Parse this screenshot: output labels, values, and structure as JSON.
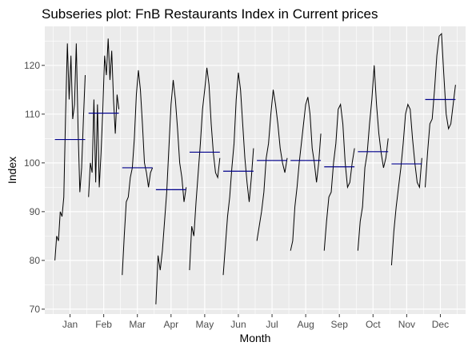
{
  "chart_data": {
    "type": "line",
    "title": "Subseries plot: FnB Restaurants Index in Current prices",
    "xlabel": "Month",
    "ylabel": "Index",
    "ylim": [
      69,
      128
    ],
    "yticks": [
      70,
      80,
      90,
      100,
      110,
      120
    ],
    "grid": true,
    "panel_background": "#ebebeb",
    "grid_color": "#ffffff",
    "line_color": "#000000",
    "mean_color": "#00008b",
    "months": [
      {
        "label": "Jan",
        "mean": 104.8,
        "values": [
          80,
          85,
          84,
          90,
          89,
          93,
          110,
          124.5,
          113,
          122,
          109,
          112,
          124.5,
          107,
          94,
          99,
          109,
          118
        ]
      },
      {
        "label": "Feb",
        "mean": 110.2,
        "values": [
          93,
          100,
          98,
          113,
          96,
          112,
          95,
          102,
          111,
          122,
          118,
          125.5,
          117,
          123,
          113,
          106,
          114,
          111
        ]
      },
      {
        "label": "Mar",
        "mean": 99.0,
        "values": [
          77,
          85,
          92,
          93,
          97,
          99,
          105,
          114,
          119,
          115,
          108,
          100,
          98,
          95,
          98,
          99
        ]
      },
      {
        "label": "Apr",
        "mean": 94.5,
        "values": [
          71,
          81,
          78,
          82,
          88,
          94,
          103,
          112,
          117,
          113,
          107,
          100,
          97,
          92,
          95
        ]
      },
      {
        "label": "May",
        "mean": 102.2,
        "values": [
          78,
          87,
          85,
          92,
          98,
          104,
          111,
          115,
          119.5,
          116,
          108,
          102,
          98,
          97,
          101
        ]
      },
      {
        "label": "Jun",
        "mean": 98.3,
        "values": [
          77,
          83,
          89,
          93,
          99,
          104,
          113,
          118.5,
          115,
          108,
          101,
          96,
          92,
          97,
          103
        ]
      },
      {
        "label": "Jul",
        "mean": 100.5,
        "values": [
          84,
          87,
          90,
          94,
          101,
          104,
          110,
          115,
          112,
          108,
          103,
          100,
          98,
          101
        ]
      },
      {
        "label": "Aug",
        "mean": 100.5,
        "values": [
          82,
          84,
          91,
          95,
          100,
          104,
          108,
          112,
          113.5,
          110,
          103,
          100,
          96,
          100,
          106
        ]
      },
      {
        "label": "Sep",
        "mean": 99.2,
        "values": [
          82,
          88,
          93,
          94,
          100,
          104,
          111,
          112,
          108,
          100,
          95,
          96,
          100,
          103
        ]
      },
      {
        "label": "Oct",
        "mean": 102.3,
        "values": [
          82,
          88,
          91,
          99,
          102,
          108,
          113,
          120,
          112,
          106,
          102,
          99,
          101,
          105
        ]
      },
      {
        "label": "Nov",
        "mean": 99.8,
        "values": [
          79,
          86,
          91,
          95,
          99,
          104,
          110,
          112,
          111,
          105,
          100,
          96,
          95,
          101
        ]
      },
      {
        "label": "Dec",
        "mean": 113.0,
        "values": [
          95,
          102,
          108,
          109,
          115,
          122,
          126,
          126.5,
          118,
          110,
          107,
          108,
          112,
          116
        ]
      }
    ]
  }
}
